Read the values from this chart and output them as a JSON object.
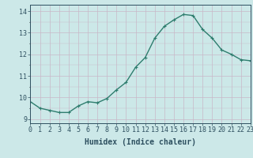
{
  "x": [
    0,
    1,
    2,
    3,
    4,
    5,
    6,
    7,
    8,
    9,
    10,
    11,
    12,
    13,
    14,
    15,
    16,
    17,
    18,
    19,
    20,
    21,
    22,
    23
  ],
  "y": [
    9.8,
    9.5,
    9.4,
    9.3,
    9.3,
    9.6,
    9.8,
    9.75,
    9.95,
    10.35,
    10.7,
    11.4,
    11.85,
    12.75,
    13.3,
    13.6,
    13.85,
    13.8,
    13.15,
    12.75,
    12.2,
    12.0,
    11.75,
    11.7
  ],
  "line_color": "#2e7d6e",
  "marker": "+",
  "bg_color": "#cce8e8",
  "grid_color": "#c8b8c8",
  "xlabel": "Humidex (Indice chaleur)",
  "ylim": [
    8.8,
    14.3
  ],
  "xlim": [
    0,
    23
  ],
  "yticks": [
    9,
    10,
    11,
    12,
    13,
    14
  ],
  "xticks": [
    0,
    1,
    2,
    3,
    4,
    5,
    6,
    7,
    8,
    9,
    10,
    11,
    12,
    13,
    14,
    15,
    16,
    17,
    18,
    19,
    20,
    21,
    22,
    23
  ],
  "font_color": "#2e5060",
  "label_fontsize": 7,
  "tick_fontsize": 6,
  "linewidth": 1.0,
  "markersize": 3
}
